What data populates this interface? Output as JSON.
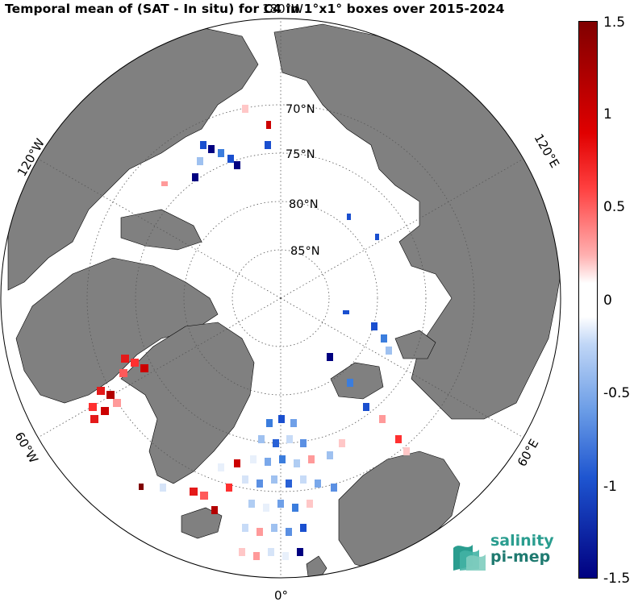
{
  "title": "Temporal mean of (SAT - In situ) for C4 in 1°x1° boxes over 2015-2024",
  "map": {
    "projection": "north-polar-stereographic",
    "latitude_labels": [
      "70°N",
      "75°N",
      "80°N",
      "85°N"
    ],
    "longitude_labels": [
      "180°W",
      "120°W",
      "60°W",
      "0°",
      "60°E",
      "120°E"
    ],
    "land_color": "#808080",
    "ocean_color": "#ffffff",
    "graticule": "dotted"
  },
  "colorbar": {
    "min": -1.5,
    "max": 1.5,
    "tick_labels": [
      "1.5",
      "1",
      "0.5",
      "0",
      "-0.5",
      "-1",
      "-1.5"
    ],
    "tick_values": [
      1.5,
      1,
      0.5,
      0,
      -0.5,
      -1,
      -1.5
    ],
    "colormap": "blue-white-red (diverging)",
    "low_color": "#000080",
    "mid_color": "#ffffff",
    "high_color": "#800000"
  },
  "logo": {
    "line1": "salinity",
    "line2": "pi-mep"
  }
}
